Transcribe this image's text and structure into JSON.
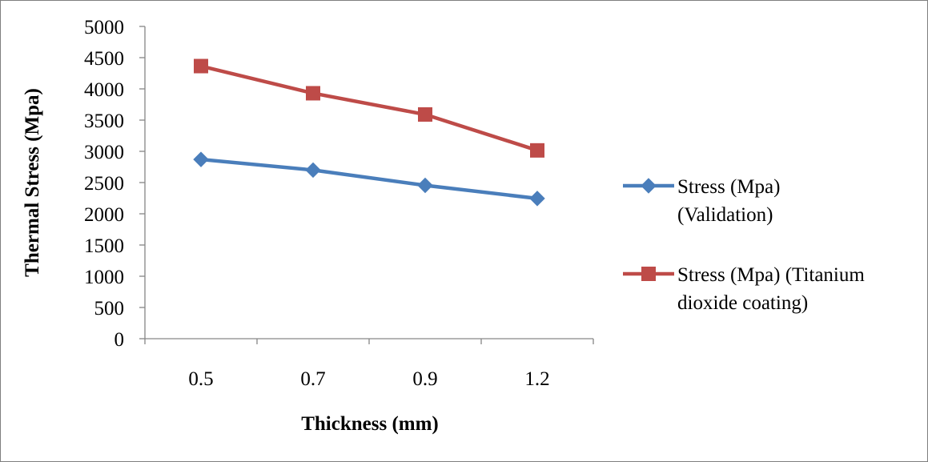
{
  "chart_data": {
    "type": "line",
    "categories": [
      "0.5",
      "0.7",
      "0.9",
      "1.2"
    ],
    "series": [
      {
        "name_lines": [
          "Stress (Mpa)",
          "(Validation)"
        ],
        "values": [
          2870,
          2700,
          2455,
          2245
        ],
        "color": "#4a7ebb",
        "marker": "diamond"
      },
      {
        "name_lines": [
          "Stress (Mpa) (Titanium",
          "dioxide coating)"
        ],
        "values": [
          4365,
          3930,
          3590,
          3015
        ],
        "color": "#be4b48",
        "marker": "square"
      }
    ],
    "xlabel": "Thickness (mm)",
    "ylabel": "Thermal Stress (Mpa)",
    "ylim": [
      0,
      5000
    ],
    "yticks": [
      0,
      500,
      1000,
      1500,
      2000,
      2500,
      3000,
      3500,
      4000,
      4500,
      5000
    ],
    "grid": false,
    "legend_position": "right"
  }
}
